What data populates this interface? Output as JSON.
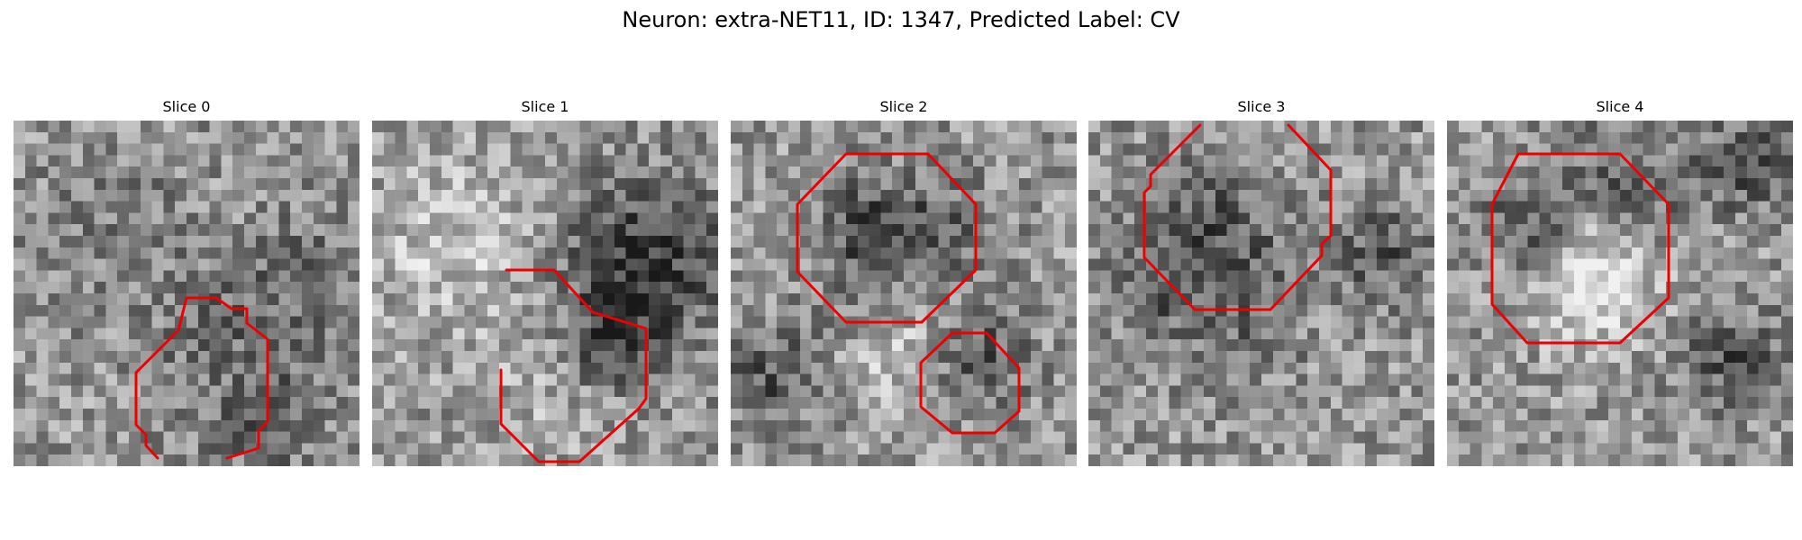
{
  "figure": {
    "title": "Neuron: extra-NET11, ID: 1347, Predicted Label: CV"
  },
  "slices": [
    {
      "title": "Slice 0"
    },
    {
      "title": "Slice 1"
    },
    {
      "title": "Slice 2"
    },
    {
      "title": "Slice 3"
    },
    {
      "title": "Slice 4"
    }
  ],
  "colors": {
    "contour": "#ee0000",
    "background": "#ffffff"
  }
}
